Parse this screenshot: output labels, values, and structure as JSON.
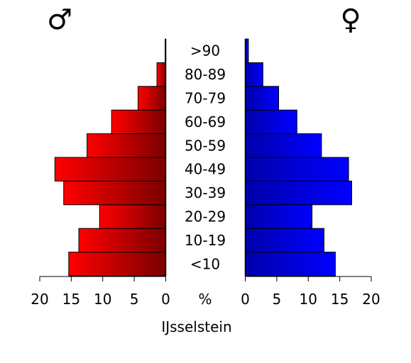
{
  "chart_data": {
    "type": "bar",
    "orientation": "horizontal",
    "layout": "population-pyramid",
    "title": "IJsselstein",
    "categories": [
      "<10",
      "10-19",
      "20-29",
      "30-39",
      "40-49",
      "50-59",
      "60-69",
      "70-79",
      "80-89",
      ">90"
    ],
    "series": [
      {
        "name": "♂",
        "side": "left",
        "color_start": "#ff0000",
        "color_end": "#7a0000",
        "values": [
          15.4,
          13.8,
          10.5,
          16.2,
          17.6,
          12.5,
          8.6,
          4.4,
          1.4,
          0.1
        ]
      },
      {
        "name": "♀",
        "side": "right",
        "color_start": "#0000aa",
        "color_end": "#0000ff",
        "values": [
          14.3,
          12.5,
          10.6,
          16.9,
          16.4,
          12.1,
          8.2,
          5.3,
          2.8,
          0.5
        ]
      }
    ],
    "axis_unit_label": "%",
    "xlim": [
      0,
      20
    ],
    "ticks": [
      20,
      15,
      10,
      5,
      0
    ],
    "right_ticks": [
      0,
      5,
      10,
      15,
      20
    ],
    "grid": false
  }
}
